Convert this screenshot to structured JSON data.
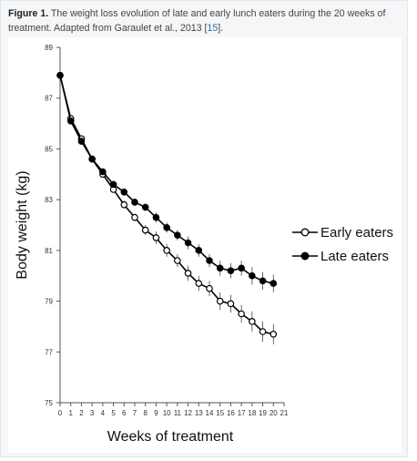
{
  "caption": {
    "label": "Figure 1.",
    "text": "The weight loss evolution of late and early lunch eaters during the 20 weeks of treatment. Adapted from Garaulet et al., 2013 [",
    "ref": "15",
    "tail": "]."
  },
  "chart_data": {
    "type": "line",
    "title": "",
    "xlabel": "Weeks of treatment",
    "ylabel": "Body weight (kg)",
    "xlim": [
      0,
      21
    ],
    "ylim": [
      75,
      89
    ],
    "xticks": [
      "0",
      "1",
      "2",
      "3",
      "4",
      "5",
      "6",
      "7",
      "8",
      "9",
      "10",
      "11",
      "12",
      "13",
      "14",
      "15",
      "16",
      "17",
      "18",
      "19",
      "20",
      "21"
    ],
    "yticks": [
      "75",
      "77",
      "79",
      "81",
      "83",
      "85",
      "87",
      "89"
    ],
    "grid": false,
    "legend_position": "right",
    "series": [
      {
        "name": "Early eaters",
        "marker": "open-circle",
        "color": "#000000",
        "x": [
          0,
          1,
          2,
          3,
          4,
          5,
          6,
          7,
          8,
          9,
          10,
          11,
          12,
          13,
          14,
          15,
          16,
          17,
          18,
          19,
          20
        ],
        "y": [
          87.9,
          86.2,
          85.4,
          84.6,
          84.0,
          83.4,
          82.8,
          82.3,
          81.8,
          81.5,
          81.0,
          80.6,
          80.1,
          79.7,
          79.5,
          79.0,
          78.9,
          78.5,
          78.2,
          77.8,
          77.7
        ],
        "err": [
          0,
          0,
          0,
          0,
          0,
          0.1,
          0.15,
          0.15,
          0.2,
          0.25,
          0.25,
          0.25,
          0.3,
          0.3,
          0.3,
          0.35,
          0.35,
          0.35,
          0.4,
          0.4,
          0.4
        ]
      },
      {
        "name": "Late eaters",
        "marker": "filled-circle",
        "color": "#000000",
        "x": [
          0,
          1,
          2,
          3,
          4,
          5,
          6,
          7,
          8,
          9,
          10,
          11,
          12,
          13,
          14,
          15,
          16,
          17,
          18,
          19,
          20
        ],
        "y": [
          87.9,
          86.1,
          85.3,
          84.6,
          84.1,
          83.6,
          83.3,
          82.9,
          82.7,
          82.3,
          81.9,
          81.6,
          81.3,
          81.0,
          80.6,
          80.3,
          80.2,
          80.3,
          80.0,
          79.8,
          79.7
        ],
        "err": [
          0,
          0,
          0,
          0,
          0,
          0.1,
          0.1,
          0.15,
          0.15,
          0.2,
          0.2,
          0.2,
          0.25,
          0.25,
          0.25,
          0.3,
          0.3,
          0.3,
          0.35,
          0.35,
          0.35
        ]
      }
    ]
  }
}
